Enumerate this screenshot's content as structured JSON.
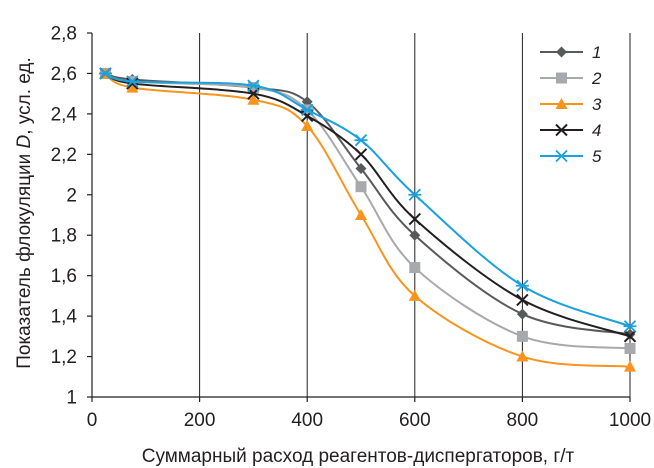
{
  "chart_data": {
    "type": "line",
    "xlabel": "Суммарный расход реагентов-диспергаторов, г/т",
    "ylabel": {
      "before": "Показатель флокуляции ",
      "symbol": "D",
      "after": ", усл. ед."
    },
    "xlim": [
      0,
      1000
    ],
    "ylim": [
      1,
      2.8
    ],
    "x_ticks": [
      {
        "value": 0,
        "label": "0"
      },
      {
        "value": 200,
        "label": "200"
      },
      {
        "value": 400,
        "label": "400"
      },
      {
        "value": 600,
        "label": "600"
      },
      {
        "value": 800,
        "label": "800"
      },
      {
        "value": 1000,
        "label": "1000"
      }
    ],
    "y_ticks": [
      {
        "value": 1,
        "label": "1"
      },
      {
        "value": 1.2,
        "label": "1,2"
      },
      {
        "value": 1.4,
        "label": "1,4"
      },
      {
        "value": 1.6,
        "label": "1,6"
      },
      {
        "value": 1.8,
        "label": "1,8"
      },
      {
        "value": 2,
        "label": "2"
      },
      {
        "value": 2.2,
        "label": "2,2"
      },
      {
        "value": 2.4,
        "label": "2,4"
      },
      {
        "value": 2.6,
        "label": "2,6"
      },
      {
        "value": 2.8,
        "label": "2,8"
      }
    ],
    "grid": {
      "x": true,
      "y": false
    },
    "legend_position": "top-right",
    "series": [
      {
        "name": "1",
        "color": "#58595b",
        "marker": "diamond",
        "x": [
          25,
          75,
          300,
          400,
          500,
          600,
          800,
          1000
        ],
        "y": [
          2.6,
          2.57,
          2.53,
          2.46,
          2.13,
          1.8,
          1.41,
          1.31
        ]
      },
      {
        "name": "2",
        "color": "#a7a9ac",
        "marker": "square",
        "x": [
          25,
          75,
          300,
          400,
          500,
          600,
          800,
          1000
        ],
        "y": [
          2.6,
          2.56,
          2.53,
          2.42,
          2.04,
          1.64,
          1.3,
          1.24
        ]
      },
      {
        "name": "3",
        "color": "#f7941d",
        "marker": "triangle",
        "x": [
          25,
          75,
          300,
          400,
          500,
          600,
          800,
          1000
        ],
        "y": [
          2.6,
          2.53,
          2.47,
          2.34,
          1.9,
          1.5,
          1.2,
          1.15
        ]
      },
      {
        "name": "4",
        "color": "#231f20",
        "marker": "x",
        "x": [
          25,
          75,
          300,
          400,
          500,
          600,
          800,
          1000
        ],
        "y": [
          2.6,
          2.55,
          2.5,
          2.39,
          2.2,
          1.88,
          1.48,
          1.3
        ]
      },
      {
        "name": "5",
        "color": "#1ba1db",
        "marker": "asterisk",
        "x": [
          25,
          75,
          300,
          400,
          500,
          600,
          800,
          1000
        ],
        "y": [
          2.6,
          2.56,
          2.54,
          2.42,
          2.27,
          2.0,
          1.55,
          1.35
        ]
      }
    ]
  }
}
